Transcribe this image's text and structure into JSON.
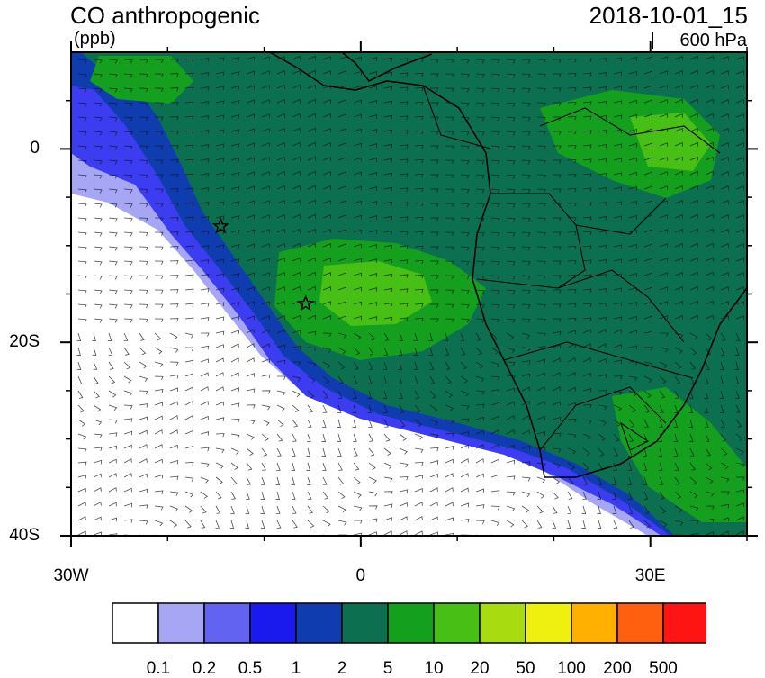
{
  "header": {
    "title": "CO anthropogenic",
    "units": "(ppb)",
    "datetime": "2018-10-01_15",
    "level": "600 hPa"
  },
  "map": {
    "lat_range": [
      -40,
      10
    ],
    "lon_range": [
      -30,
      40
    ],
    "y_ticks": [
      {
        "lat": 0,
        "label": "0"
      },
      {
        "lat": -20,
        "label": "20S"
      },
      {
        "lat": -40,
        "label": "40S"
      }
    ],
    "x_ticks": [
      {
        "lon": -30,
        "label": "30W"
      },
      {
        "lon": 0,
        "label": "0"
      },
      {
        "lon": 30,
        "label": "30E"
      }
    ],
    "markers": [
      {
        "type": "star",
        "lon": -14.5,
        "lat": -8
      },
      {
        "type": "star",
        "lon": -5.7,
        "lat": -16
      }
    ]
  },
  "colorbar": {
    "colors": [
      "#ffffff",
      "#a6a6f5",
      "#6363f2",
      "#1a1aef",
      "#0f3db0",
      "#0c7050",
      "#14a01e",
      "#48bf14",
      "#a8dc10",
      "#f0f010",
      "#ffb000",
      "#ff6010",
      "#ff1414"
    ],
    "labels": [
      "0.1",
      "0.2",
      "0.5",
      "1",
      "2",
      "5",
      "10",
      "20",
      "50",
      "100",
      "200",
      "500"
    ]
  }
}
